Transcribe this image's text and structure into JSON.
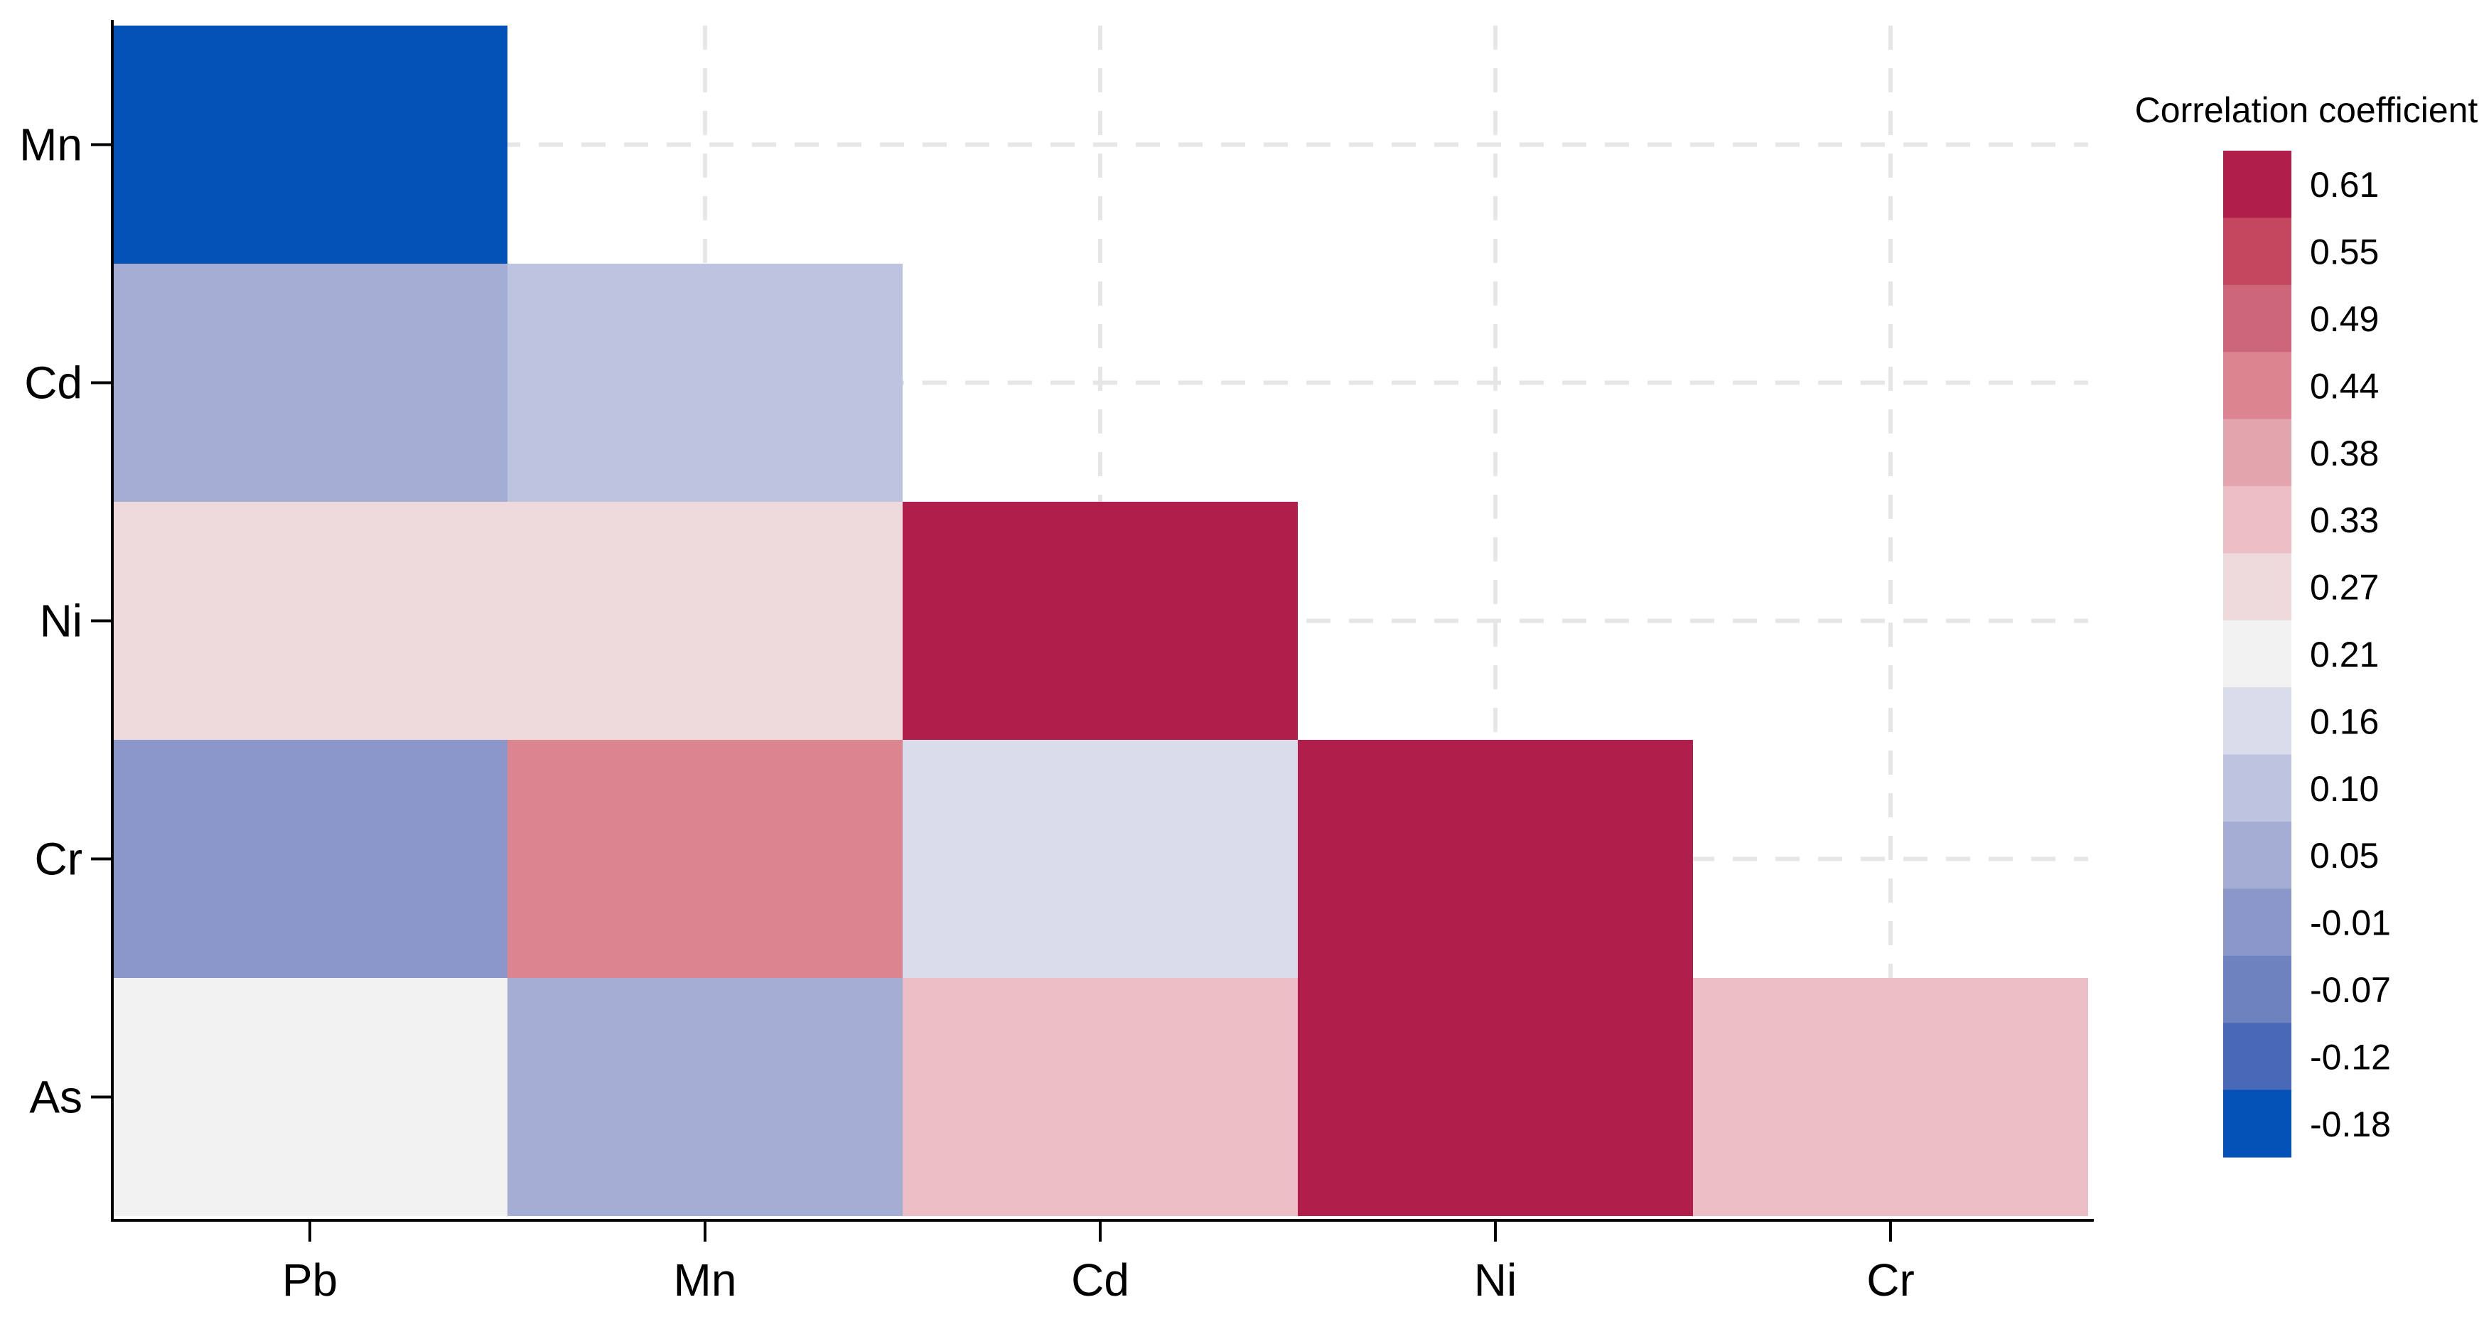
{
  "chart_data": {
    "type": "heatmap",
    "title": "",
    "xlabel": "",
    "ylabel": "",
    "x_categories": [
      "Pb",
      "Mn",
      "Cd",
      "Ni",
      "Cr"
    ],
    "y_categories": [
      "Mn",
      "Cd",
      "Ni",
      "Cr",
      "As"
    ],
    "layout": "lower-triangle",
    "grid": true,
    "grid_style": "dashed",
    "cells": [
      {
        "x": "Pb",
        "y": "Mn",
        "value": -0.18
      },
      {
        "x": "Pb",
        "y": "Cd",
        "value": 0.05
      },
      {
        "x": "Mn",
        "y": "Cd",
        "value": 0.1
      },
      {
        "x": "Pb",
        "y": "Ni",
        "value": 0.27
      },
      {
        "x": "Mn",
        "y": "Ni",
        "value": 0.27
      },
      {
        "x": "Cd",
        "y": "Ni",
        "value": 0.61
      },
      {
        "x": "Pb",
        "y": "Cr",
        "value": -0.01
      },
      {
        "x": "Mn",
        "y": "Cr",
        "value": 0.44
      },
      {
        "x": "Cd",
        "y": "Cr",
        "value": 0.16
      },
      {
        "x": "Ni",
        "y": "Cr",
        "value": 0.61
      },
      {
        "x": "Pb",
        "y": "As",
        "value": 0.21
      },
      {
        "x": "Mn",
        "y": "As",
        "value": 0.05
      },
      {
        "x": "Cd",
        "y": "As",
        "value": 0.33
      },
      {
        "x": "Ni",
        "y": "As",
        "value": 0.61
      },
      {
        "x": "Cr",
        "y": "As",
        "value": 0.33
      }
    ],
    "legend": {
      "title": "Correlation coefficient",
      "placement": "right",
      "entries": [
        {
          "label": "0.61",
          "color": "#B01E4C"
        },
        {
          "label": "0.55",
          "color": "#C4465F"
        },
        {
          "label": "0.49",
          "color": "#CE6679"
        },
        {
          "label": "0.44",
          "color": "#DA8590"
        },
        {
          "label": "0.38",
          "color": "#E4A4AE"
        },
        {
          "label": "0.33",
          "color": "#EBBDC5"
        },
        {
          "label": "0.27",
          "color": "#EEDADD"
        },
        {
          "label": "0.21",
          "color": "#F2F2F2"
        },
        {
          "label": "0.16",
          "color": "#D8DCEB"
        },
        {
          "label": "0.10",
          "color": "#BEC3DF"
        },
        {
          "label": "0.05",
          "color": "#A4ADD3"
        },
        {
          "label": "-0.01",
          "color": "#8B97C9"
        },
        {
          "label": "-0.07",
          "color": "#6F82C0"
        },
        {
          "label": "-0.12",
          "color": "#4968B8"
        },
        {
          "label": "-0.18",
          "color": "#0251B6"
        }
      ]
    }
  }
}
